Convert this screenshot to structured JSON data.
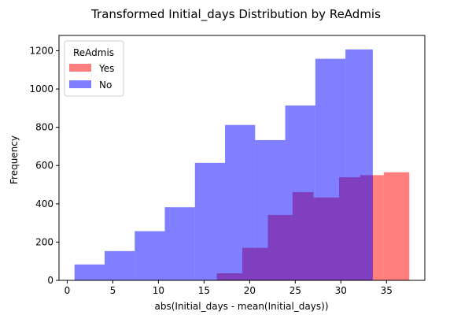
{
  "chart_data": {
    "type": "histogram",
    "title": "Transformed Initial_days Distribution by ReAdmis",
    "xlabel": "abs(Initial_days - mean(Initial_days))",
    "ylabel": "Frequency",
    "xlim": [
      -0.9,
      39.2
    ],
    "ylim": [
      0,
      1280
    ],
    "xticks": [
      0,
      5,
      10,
      15,
      20,
      25,
      30,
      35
    ],
    "yticks": [
      0,
      200,
      400,
      600,
      800,
      1000,
      1200
    ],
    "grid": false,
    "legend": {
      "title": "ReAdmis",
      "position": "top-left"
    },
    "series": [
      {
        "name": "Yes",
        "color": "#ff0000",
        "alpha": 0.5,
        "bins": [
          {
            "x0": 16.4,
            "x1": 19.2,
            "count": 37
          },
          {
            "x0": 19.2,
            "x1": 22.0,
            "count": 170
          },
          {
            "x0": 22.0,
            "x1": 24.7,
            "count": 342
          },
          {
            "x0": 24.7,
            "x1": 27.0,
            "count": 461
          },
          {
            "x0": 27.0,
            "x1": 29.8,
            "count": 433
          },
          {
            "x0": 29.8,
            "x1": 32.1,
            "count": 539
          },
          {
            "x0": 32.1,
            "x1": 34.7,
            "count": 550
          },
          {
            "x0": 34.7,
            "x1": 37.5,
            "count": 565
          }
        ]
      },
      {
        "name": "No",
        "color": "#0000ff",
        "alpha": 0.5,
        "bins": [
          {
            "x0": 0.8,
            "x1": 4.1,
            "count": 83
          },
          {
            "x0": 4.1,
            "x1": 7.4,
            "count": 153
          },
          {
            "x0": 7.4,
            "x1": 10.7,
            "count": 257
          },
          {
            "x0": 10.7,
            "x1": 14.0,
            "count": 382
          },
          {
            "x0": 14.0,
            "x1": 17.3,
            "count": 614
          },
          {
            "x0": 17.3,
            "x1": 20.6,
            "count": 812
          },
          {
            "x0": 20.6,
            "x1": 23.9,
            "count": 733
          },
          {
            "x0": 23.9,
            "x1": 27.2,
            "count": 914
          },
          {
            "x0": 27.2,
            "x1": 30.5,
            "count": 1158
          },
          {
            "x0": 30.5,
            "x1": 33.5,
            "count": 1207
          }
        ]
      }
    ]
  }
}
